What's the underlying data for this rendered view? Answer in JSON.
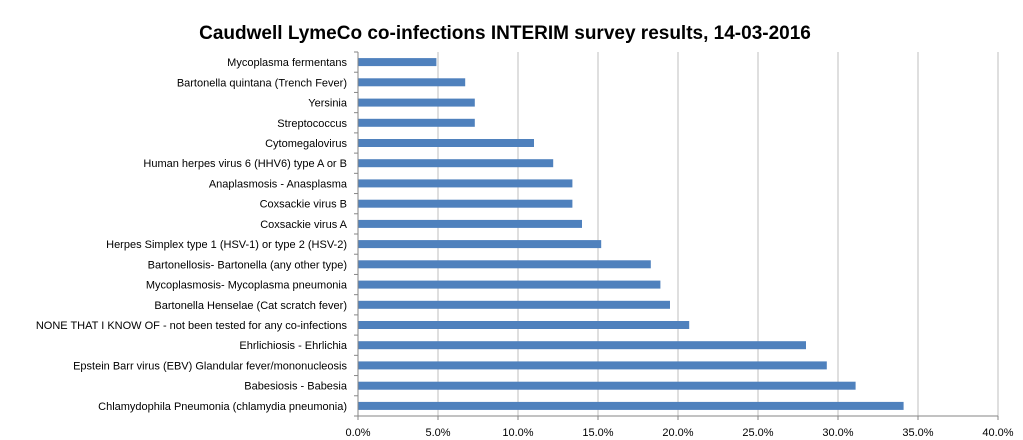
{
  "chart_data": {
    "type": "bar",
    "orientation": "horizontal",
    "title": "Caudwell LymeCo co-infections INTERIM survey results, 14-03-2016",
    "xlabel": "",
    "ylabel": "",
    "xlim": [
      0,
      40
    ],
    "x_ticks": [
      "0.0%",
      "5.0%",
      "10.0%",
      "15.0%",
      "20.0%",
      "25.0%",
      "30.0%",
      "35.0%",
      "40.0%"
    ],
    "grid": "vertical",
    "legend": "none",
    "bar_color": "#4f81bd",
    "categories": [
      "Mycoplasma fermentans",
      "Bartonella quintana (Trench Fever)",
      "Yersinia",
      "Streptococcus",
      "Cytomegalovirus",
      "Human herpes virus 6 (HHV6) type A or B",
      "Anaplasmosis - Anasplasma",
      "Coxsackie virus B",
      "Coxsackie virus A",
      "Herpes Simplex type 1 (HSV-1) or type 2 (HSV-2)",
      "Bartonellosis- Bartonella (any other type)",
      "Mycoplasmosis- Mycoplasma pneumonia",
      "Bartonella Henselae (Cat scratch fever)",
      "NONE THAT I KNOW OF - not been tested for any co-infections",
      "Ehrlichiosis - Ehrlichia",
      "Epstein Barr virus (EBV) Glandular fever/mononucleosis",
      "Babesiosis - Babesia",
      "Chlamydophila Pneumonia (chlamydia pneumonia)"
    ],
    "values": [
      4.9,
      6.7,
      7.3,
      7.3,
      11.0,
      12.2,
      13.4,
      13.4,
      14.0,
      15.2,
      18.3,
      18.9,
      19.5,
      20.7,
      28.0,
      29.3,
      31.1,
      34.1
    ]
  }
}
